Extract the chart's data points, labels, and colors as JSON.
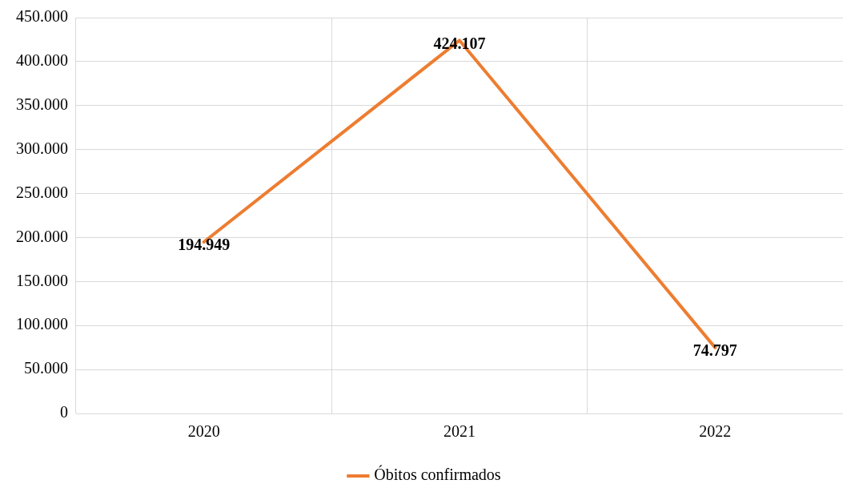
{
  "chart_data": {
    "type": "line",
    "categories": [
      "2020",
      "2021",
      "2022"
    ],
    "series": [
      {
        "name": "Óbitos confirmados",
        "color": "#ed7d31",
        "values": [
          194949,
          424107,
          74797
        ],
        "value_labels": [
          "194.949",
          "424.107",
          "74.797"
        ]
      }
    ],
    "ylim": [
      0,
      450000
    ],
    "yticks": [
      {
        "value": 0,
        "label": "0"
      },
      {
        "value": 50000,
        "label": "50.000"
      },
      {
        "value": 100000,
        "label": "100.000"
      },
      {
        "value": 150000,
        "label": "150.000"
      },
      {
        "value": 200000,
        "label": "200.000"
      },
      {
        "value": 250000,
        "label": "250.000"
      },
      {
        "value": 300000,
        "label": "300.000"
      },
      {
        "value": 350000,
        "label": "350.000"
      },
      {
        "value": 400000,
        "label": "400.000"
      },
      {
        "value": 450000,
        "label": "450.000"
      }
    ],
    "grid": true,
    "legend": "bottom",
    "marker": "none",
    "line_style": "solid"
  }
}
